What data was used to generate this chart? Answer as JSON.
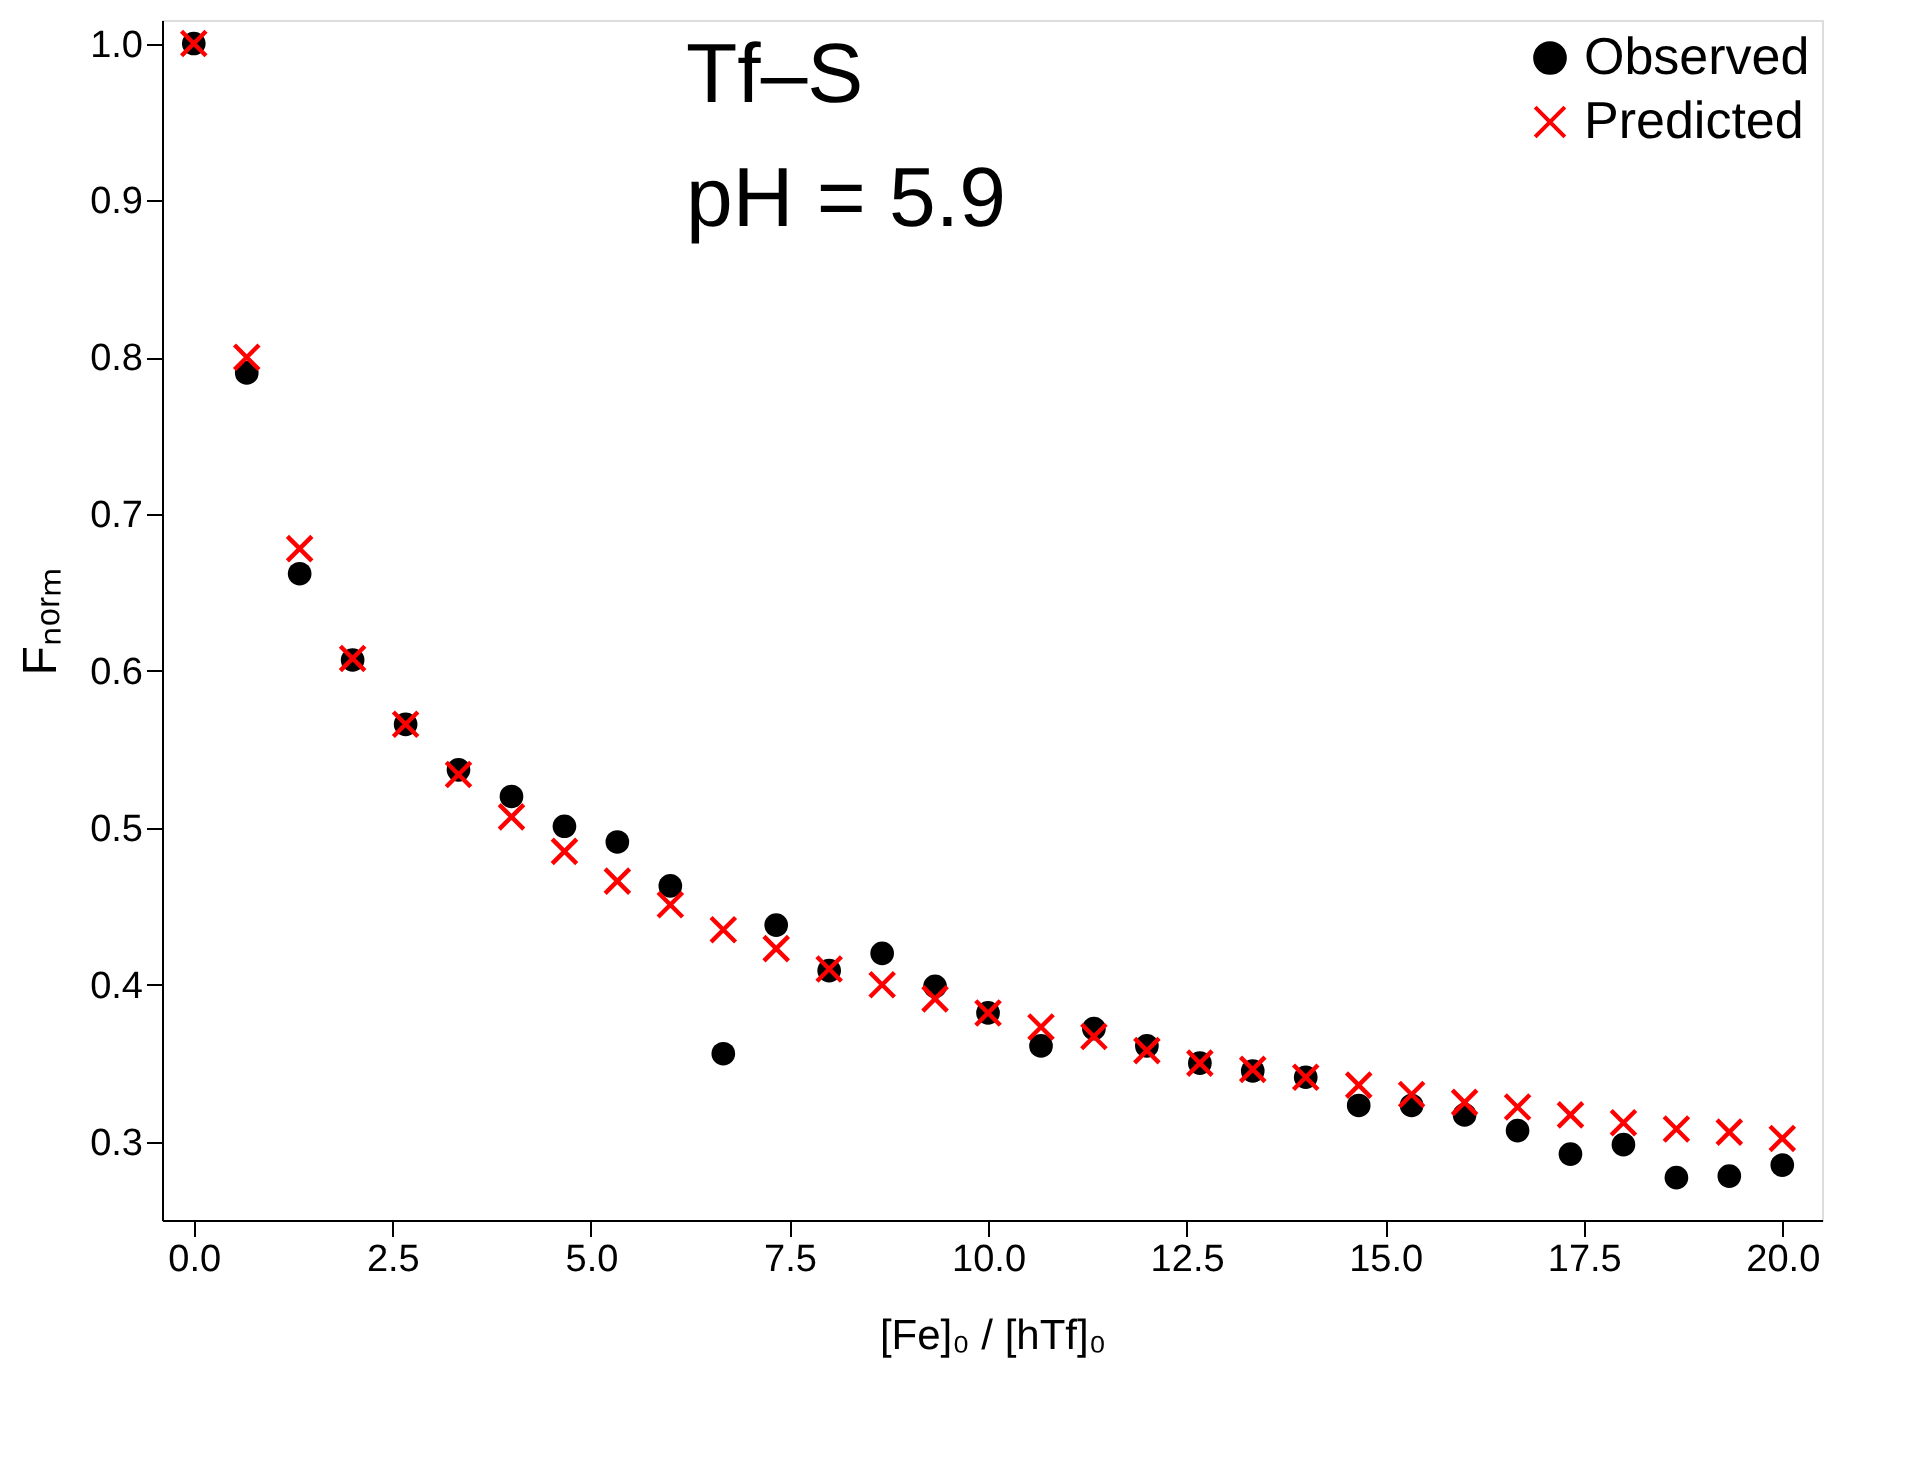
{
  "chart_data": {
    "type": "scatter",
    "xlabel": "[Fe]₀ / [hTf]₀",
    "ylabel": "Fₙₒᵣₘ",
    "annotations": [
      "Tf–S",
      "pH = 5.9"
    ],
    "x": [
      0,
      0.667,
      1.333,
      2,
      2.667,
      3.333,
      4,
      4.667,
      5.333,
      6,
      6.667,
      7.333,
      8,
      8.667,
      9.333,
      10,
      10.667,
      11.333,
      12,
      12.667,
      13.333,
      14,
      14.667,
      15.333,
      16,
      16.667,
      17.333,
      18,
      18.667,
      19.333,
      20
    ],
    "series": [
      {
        "name": "Observed",
        "color": "#000000",
        "marker": "circle",
        "values": [
          1.0,
          0.79,
          0.662,
          0.607,
          0.566,
          0.537,
          0.52,
          0.501,
          0.491,
          0.463,
          0.356,
          0.438,
          0.409,
          0.42,
          0.399,
          0.382,
          0.361,
          0.372,
          0.361,
          0.35,
          0.345,
          0.341,
          0.323,
          0.323,
          0.317,
          0.307,
          0.292,
          0.298,
          0.277,
          0.278,
          0.285
        ]
      },
      {
        "name": "Predicted",
        "color": "#ff0000",
        "marker": "cross",
        "values": [
          1.0,
          0.8,
          0.678,
          0.608,
          0.566,
          0.534,
          0.507,
          0.485,
          0.466,
          0.451,
          0.435,
          0.423,
          0.41,
          0.4,
          0.391,
          0.382,
          0.373,
          0.367,
          0.358,
          0.35,
          0.346,
          0.341,
          0.336,
          0.33,
          0.325,
          0.322,
          0.317,
          0.312,
          0.308,
          0.306,
          0.302
        ]
      }
    ],
    "xlim": [
      -0.4,
      20.5
    ],
    "ylim": [
      0.25,
      1.015
    ],
    "xticks": [
      {
        "value": 0,
        "label": "0.0"
      },
      2.5,
      {
        "value": 5,
        "label": "5.0"
      },
      7.5,
      {
        "value": 10,
        "label": "10.0"
      },
      12.5,
      {
        "value": 15,
        "label": "15.0"
      },
      17.5,
      {
        "value": 20,
        "label": "20.0"
      }
    ],
    "yticks": [
      0.3,
      0.4,
      0.5,
      0.6,
      0.7,
      0.8,
      0.9,
      {
        "value": 1,
        "label": "1.0"
      }
    ],
    "grid": false,
    "legend": "top right"
  }
}
